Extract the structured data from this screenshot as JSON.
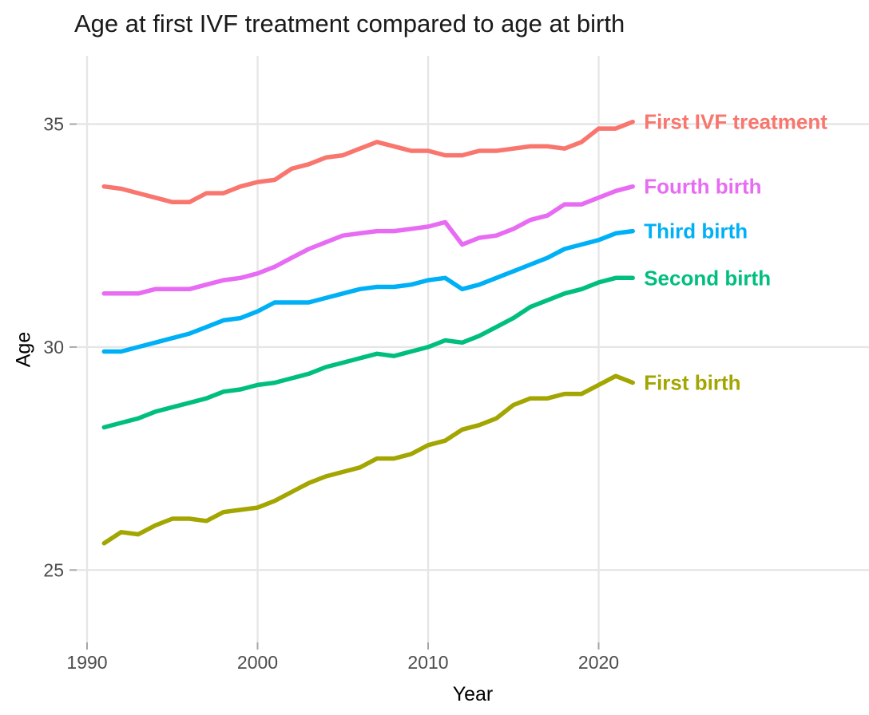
{
  "page": {
    "title": "Age at first IVF treatment compared to age at birth"
  },
  "chart_data": {
    "type": "line",
    "title": "Age at first IVF treatment compared to age at birth",
    "xlabel": "Year",
    "ylabel": "Age",
    "x_tick_labels": [
      "1990",
      "2000",
      "2010",
      "2020"
    ],
    "x_tick_values": [
      1990,
      2000,
      2010,
      2020
    ],
    "y_tick_labels": [
      "25",
      "30",
      "35"
    ],
    "y_tick_values": [
      25,
      30,
      35
    ],
    "xlim": [
      1989.1,
      2035.9
    ],
    "ylim": [
      23.3,
      36.5
    ],
    "grid": "major gridlines only, light gray on white",
    "legend_position": "direct labels at right end of each line",
    "background": "#ffffff",
    "gridline_color": "#e6e6e6",
    "tick_color": "#a6a6a6",
    "tick_label_color": "#4d4d4d",
    "x": [
      1991,
      1992,
      1993,
      1994,
      1995,
      1996,
      1997,
      1998,
      1999,
      2000,
      2001,
      2002,
      2003,
      2004,
      2005,
      2006,
      2007,
      2008,
      2009,
      2010,
      2011,
      2012,
      2013,
      2014,
      2015,
      2016,
      2017,
      2018,
      2019,
      2020,
      2021,
      2022
    ],
    "series": [
      {
        "name": "First IVF treatment",
        "color": "#F8766D",
        "values": [
          33.6,
          33.55,
          33.45,
          33.35,
          33.25,
          33.25,
          33.45,
          33.45,
          33.6,
          33.7,
          33.75,
          34.0,
          34.1,
          34.25,
          34.3,
          34.45,
          34.6,
          34.5,
          34.4,
          34.4,
          34.3,
          34.3,
          34.4,
          34.4,
          34.45,
          34.5,
          34.5,
          34.45,
          34.6,
          34.9,
          34.9,
          35.05
        ]
      },
      {
        "name": "Fourth birth",
        "color": "#E76BF3",
        "values": [
          31.2,
          31.2,
          31.2,
          31.3,
          31.3,
          31.3,
          31.4,
          31.5,
          31.55,
          31.65,
          31.8,
          32.0,
          32.2,
          32.35,
          32.5,
          32.55,
          32.6,
          32.6,
          32.65,
          32.7,
          32.8,
          32.3,
          32.45,
          32.5,
          32.65,
          32.85,
          32.95,
          33.2,
          33.2,
          33.35,
          33.5,
          33.6
        ]
      },
      {
        "name": "Third birth",
        "color": "#00B0F6",
        "values": [
          29.9,
          29.9,
          30.0,
          30.1,
          30.2,
          30.3,
          30.45,
          30.6,
          30.65,
          30.8,
          31.0,
          31.0,
          31.0,
          31.1,
          31.2,
          31.3,
          31.35,
          31.35,
          31.4,
          31.5,
          31.55,
          31.3,
          31.4,
          31.55,
          31.7,
          31.85,
          32.0,
          32.2,
          32.3,
          32.4,
          32.55,
          32.6
        ]
      },
      {
        "name": "Second birth",
        "color": "#00BF7D",
        "values": [
          28.2,
          28.3,
          28.4,
          28.55,
          28.65,
          28.75,
          28.85,
          29.0,
          29.05,
          29.15,
          29.2,
          29.3,
          29.4,
          29.55,
          29.65,
          29.75,
          29.85,
          29.8,
          29.9,
          30.0,
          30.15,
          30.1,
          30.25,
          30.45,
          30.65,
          30.9,
          31.05,
          31.2,
          31.3,
          31.45,
          31.55,
          31.55
        ]
      },
      {
        "name": "First birth",
        "color": "#A3A500",
        "values": [
          25.6,
          25.85,
          25.8,
          26.0,
          26.15,
          26.15,
          26.1,
          26.3,
          26.35,
          26.4,
          26.55,
          26.75,
          26.95,
          27.1,
          27.2,
          27.3,
          27.5,
          27.5,
          27.6,
          27.8,
          27.9,
          28.15,
          28.25,
          28.4,
          28.7,
          28.85,
          28.85,
          28.95,
          28.95,
          29.15,
          29.35,
          29.2
        ]
      }
    ]
  }
}
